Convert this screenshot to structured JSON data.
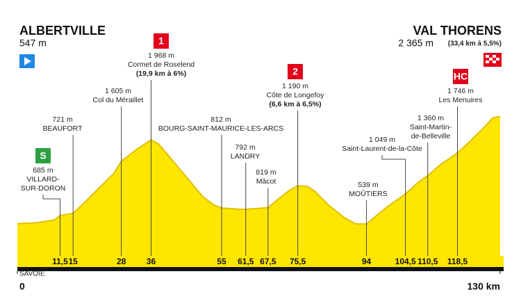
{
  "chart_data": {
    "type": "profile",
    "start": {
      "name": "ALBERTVILLE",
      "altitude": "547 m"
    },
    "finish": {
      "name": "VAL THORENS",
      "altitude": "2 365 m",
      "climb": "(33,4 km à 5,5%)"
    },
    "region": "SAVOIE",
    "color": "#ffe600",
    "xlim": [
      0,
      130
    ],
    "ylim": [
      0,
      2500
    ],
    "xticks": [
      0,
      {
        "value": 130,
        "label": "130 km"
      }
    ],
    "profile": {
      "x": [
        0,
        5,
        10,
        11.5,
        15,
        18,
        22,
        26,
        28,
        32,
        36,
        38,
        42,
        46,
        50,
        53,
        55,
        60,
        61.5,
        64,
        67.5,
        70,
        73,
        75.5,
        78,
        80,
        84,
        88,
        91,
        94,
        97,
        100,
        104.5,
        108,
        110.5,
        114,
        118.5,
        122,
        126,
        128,
        130
      ],
      "values": [
        547,
        560,
        610,
        685,
        721,
        900,
        1150,
        1400,
        1605,
        1800,
        1968,
        1900,
        1600,
        1300,
        1000,
        860,
        812,
        790,
        792,
        800,
        819,
        950,
        1100,
        1190,
        1180,
        1100,
        850,
        650,
        545,
        539,
        700,
        850,
        1049,
        1250,
        1360,
        1550,
        1746,
        1950,
        2200,
        2340,
        2365
      ]
    },
    "waypoints": [
      {
        "km": {
          "value": 11.5,
          "label": "11,5"
        },
        "lines": [
          "685 m",
          "VILLARD-",
          "SUR-DORON"
        ],
        "badge": {
          "text": "S",
          "color": "#2ea043"
        }
      },
      {
        "km": 15,
        "lines": [
          "721 m",
          "BEAUFORT"
        ]
      },
      {
        "km": 28,
        "lines": [
          "1 605 m",
          "Col du Méraillet"
        ]
      },
      {
        "km": 36,
        "lines": [
          "1 968 m",
          "Cormet de Roselend",
          "(19,9 km à 6%)"
        ],
        "badge": {
          "text": "1",
          "color": "#e2001a"
        }
      },
      {
        "km": 55,
        "lines": [
          "812 m",
          "BOURG-SAINT-MAURICE-LES-ARCS"
        ]
      },
      {
        "km": {
          "value": 61.5,
          "label": "61,5"
        },
        "lines": [
          "792 m",
          "LANDRY"
        ]
      },
      {
        "km": {
          "value": 67.5,
          "label": "67,5"
        },
        "lines": [
          "819 m",
          "Mâcot"
        ]
      },
      {
        "km": {
          "value": 75.5,
          "label": "75,5"
        },
        "lines": [
          "1 190 m",
          "Côte de Longefoy",
          "(6,6 km à 6,5%)"
        ],
        "badge": {
          "text": "2",
          "color": "#e2001a"
        }
      },
      {
        "km": 94,
        "lines": [
          "539 m",
          "MOÛTIERS"
        ]
      },
      {
        "km": {
          "value": 104.5,
          "label": "104,5"
        },
        "lines": [
          "1 049 m",
          "Saint-Laurent-de-la-Côte"
        ]
      },
      {
        "km": {
          "value": 110.5,
          "label": "110,5"
        },
        "lines": [
          "1 360 m",
          "Saint-Martin-",
          "de-Belleville"
        ]
      },
      {
        "km": {
          "value": 118.5,
          "label": "118,5"
        },
        "lines": [
          "1 746 m",
          "Les Menuires"
        ],
        "badge": {
          "text": "HC",
          "color": "#e2001a"
        }
      }
    ]
  }
}
